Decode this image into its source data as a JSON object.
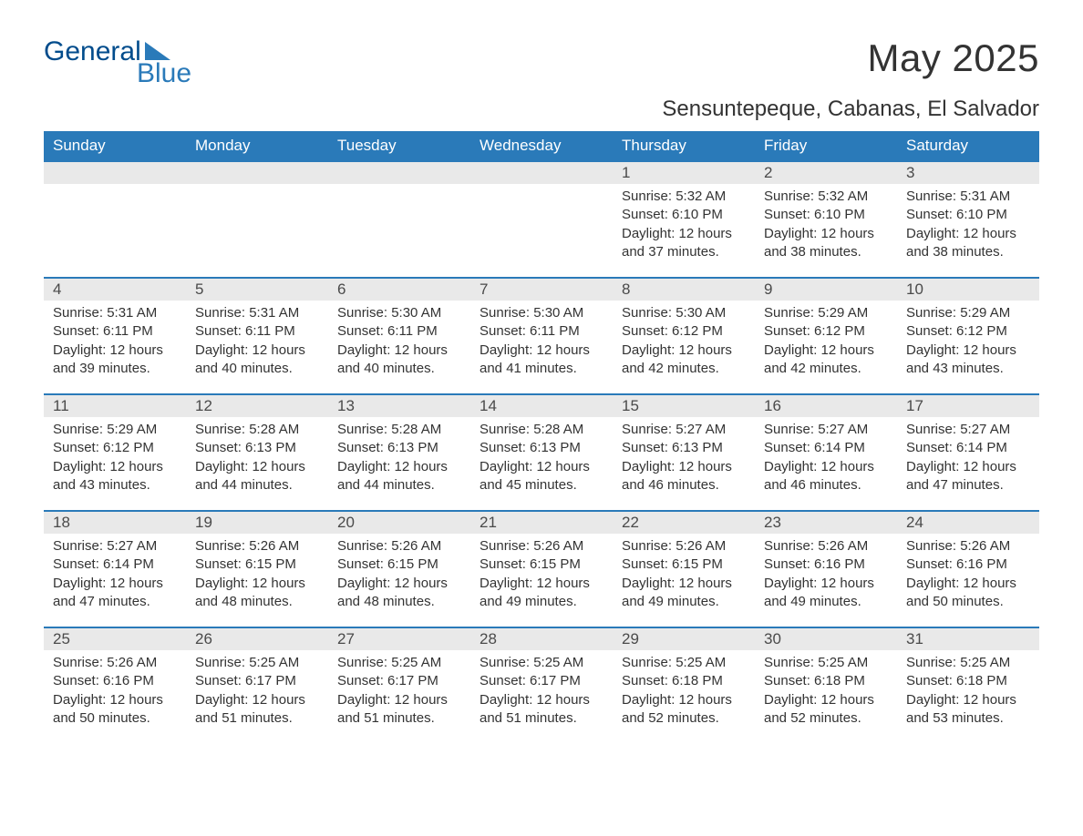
{
  "logo": {
    "text1": "General",
    "text2": "Blue"
  },
  "title": "May 2025",
  "location": "Sensuntepeque, Cabanas, El Salvador",
  "colors": {
    "header_bg": "#2a7ab9",
    "header_text": "#ffffff",
    "daynum_bg": "#e9e9e9",
    "border": "#2a7ab9",
    "text": "#333333",
    "logo_dark": "#014c8c",
    "logo_light": "#2a7ab9"
  },
  "day_headers": [
    "Sunday",
    "Monday",
    "Tuesday",
    "Wednesday",
    "Thursday",
    "Friday",
    "Saturday"
  ],
  "weeks": [
    [
      null,
      null,
      null,
      null,
      {
        "n": "1",
        "sunrise": "Sunrise: 5:32 AM",
        "sunset": "Sunset: 6:10 PM",
        "daylight": "Daylight: 12 hours and 37 minutes."
      },
      {
        "n": "2",
        "sunrise": "Sunrise: 5:32 AM",
        "sunset": "Sunset: 6:10 PM",
        "daylight": "Daylight: 12 hours and 38 minutes."
      },
      {
        "n": "3",
        "sunrise": "Sunrise: 5:31 AM",
        "sunset": "Sunset: 6:10 PM",
        "daylight": "Daylight: 12 hours and 38 minutes."
      }
    ],
    [
      {
        "n": "4",
        "sunrise": "Sunrise: 5:31 AM",
        "sunset": "Sunset: 6:11 PM",
        "daylight": "Daylight: 12 hours and 39 minutes."
      },
      {
        "n": "5",
        "sunrise": "Sunrise: 5:31 AM",
        "sunset": "Sunset: 6:11 PM",
        "daylight": "Daylight: 12 hours and 40 minutes."
      },
      {
        "n": "6",
        "sunrise": "Sunrise: 5:30 AM",
        "sunset": "Sunset: 6:11 PM",
        "daylight": "Daylight: 12 hours and 40 minutes."
      },
      {
        "n": "7",
        "sunrise": "Sunrise: 5:30 AM",
        "sunset": "Sunset: 6:11 PM",
        "daylight": "Daylight: 12 hours and 41 minutes."
      },
      {
        "n": "8",
        "sunrise": "Sunrise: 5:30 AM",
        "sunset": "Sunset: 6:12 PM",
        "daylight": "Daylight: 12 hours and 42 minutes."
      },
      {
        "n": "9",
        "sunrise": "Sunrise: 5:29 AM",
        "sunset": "Sunset: 6:12 PM",
        "daylight": "Daylight: 12 hours and 42 minutes."
      },
      {
        "n": "10",
        "sunrise": "Sunrise: 5:29 AM",
        "sunset": "Sunset: 6:12 PM",
        "daylight": "Daylight: 12 hours and 43 minutes."
      }
    ],
    [
      {
        "n": "11",
        "sunrise": "Sunrise: 5:29 AM",
        "sunset": "Sunset: 6:12 PM",
        "daylight": "Daylight: 12 hours and 43 minutes."
      },
      {
        "n": "12",
        "sunrise": "Sunrise: 5:28 AM",
        "sunset": "Sunset: 6:13 PM",
        "daylight": "Daylight: 12 hours and 44 minutes."
      },
      {
        "n": "13",
        "sunrise": "Sunrise: 5:28 AM",
        "sunset": "Sunset: 6:13 PM",
        "daylight": "Daylight: 12 hours and 44 minutes."
      },
      {
        "n": "14",
        "sunrise": "Sunrise: 5:28 AM",
        "sunset": "Sunset: 6:13 PM",
        "daylight": "Daylight: 12 hours and 45 minutes."
      },
      {
        "n": "15",
        "sunrise": "Sunrise: 5:27 AM",
        "sunset": "Sunset: 6:13 PM",
        "daylight": "Daylight: 12 hours and 46 minutes."
      },
      {
        "n": "16",
        "sunrise": "Sunrise: 5:27 AM",
        "sunset": "Sunset: 6:14 PM",
        "daylight": "Daylight: 12 hours and 46 minutes."
      },
      {
        "n": "17",
        "sunrise": "Sunrise: 5:27 AM",
        "sunset": "Sunset: 6:14 PM",
        "daylight": "Daylight: 12 hours and 47 minutes."
      }
    ],
    [
      {
        "n": "18",
        "sunrise": "Sunrise: 5:27 AM",
        "sunset": "Sunset: 6:14 PM",
        "daylight": "Daylight: 12 hours and 47 minutes."
      },
      {
        "n": "19",
        "sunrise": "Sunrise: 5:26 AM",
        "sunset": "Sunset: 6:15 PM",
        "daylight": "Daylight: 12 hours and 48 minutes."
      },
      {
        "n": "20",
        "sunrise": "Sunrise: 5:26 AM",
        "sunset": "Sunset: 6:15 PM",
        "daylight": "Daylight: 12 hours and 48 minutes."
      },
      {
        "n": "21",
        "sunrise": "Sunrise: 5:26 AM",
        "sunset": "Sunset: 6:15 PM",
        "daylight": "Daylight: 12 hours and 49 minutes."
      },
      {
        "n": "22",
        "sunrise": "Sunrise: 5:26 AM",
        "sunset": "Sunset: 6:15 PM",
        "daylight": "Daylight: 12 hours and 49 minutes."
      },
      {
        "n": "23",
        "sunrise": "Sunrise: 5:26 AM",
        "sunset": "Sunset: 6:16 PM",
        "daylight": "Daylight: 12 hours and 49 minutes."
      },
      {
        "n": "24",
        "sunrise": "Sunrise: 5:26 AM",
        "sunset": "Sunset: 6:16 PM",
        "daylight": "Daylight: 12 hours and 50 minutes."
      }
    ],
    [
      {
        "n": "25",
        "sunrise": "Sunrise: 5:26 AM",
        "sunset": "Sunset: 6:16 PM",
        "daylight": "Daylight: 12 hours and 50 minutes."
      },
      {
        "n": "26",
        "sunrise": "Sunrise: 5:25 AM",
        "sunset": "Sunset: 6:17 PM",
        "daylight": "Daylight: 12 hours and 51 minutes."
      },
      {
        "n": "27",
        "sunrise": "Sunrise: 5:25 AM",
        "sunset": "Sunset: 6:17 PM",
        "daylight": "Daylight: 12 hours and 51 minutes."
      },
      {
        "n": "28",
        "sunrise": "Sunrise: 5:25 AM",
        "sunset": "Sunset: 6:17 PM",
        "daylight": "Daylight: 12 hours and 51 minutes."
      },
      {
        "n": "29",
        "sunrise": "Sunrise: 5:25 AM",
        "sunset": "Sunset: 6:18 PM",
        "daylight": "Daylight: 12 hours and 52 minutes."
      },
      {
        "n": "30",
        "sunrise": "Sunrise: 5:25 AM",
        "sunset": "Sunset: 6:18 PM",
        "daylight": "Daylight: 12 hours and 52 minutes."
      },
      {
        "n": "31",
        "sunrise": "Sunrise: 5:25 AM",
        "sunset": "Sunset: 6:18 PM",
        "daylight": "Daylight: 12 hours and 53 minutes."
      }
    ]
  ]
}
